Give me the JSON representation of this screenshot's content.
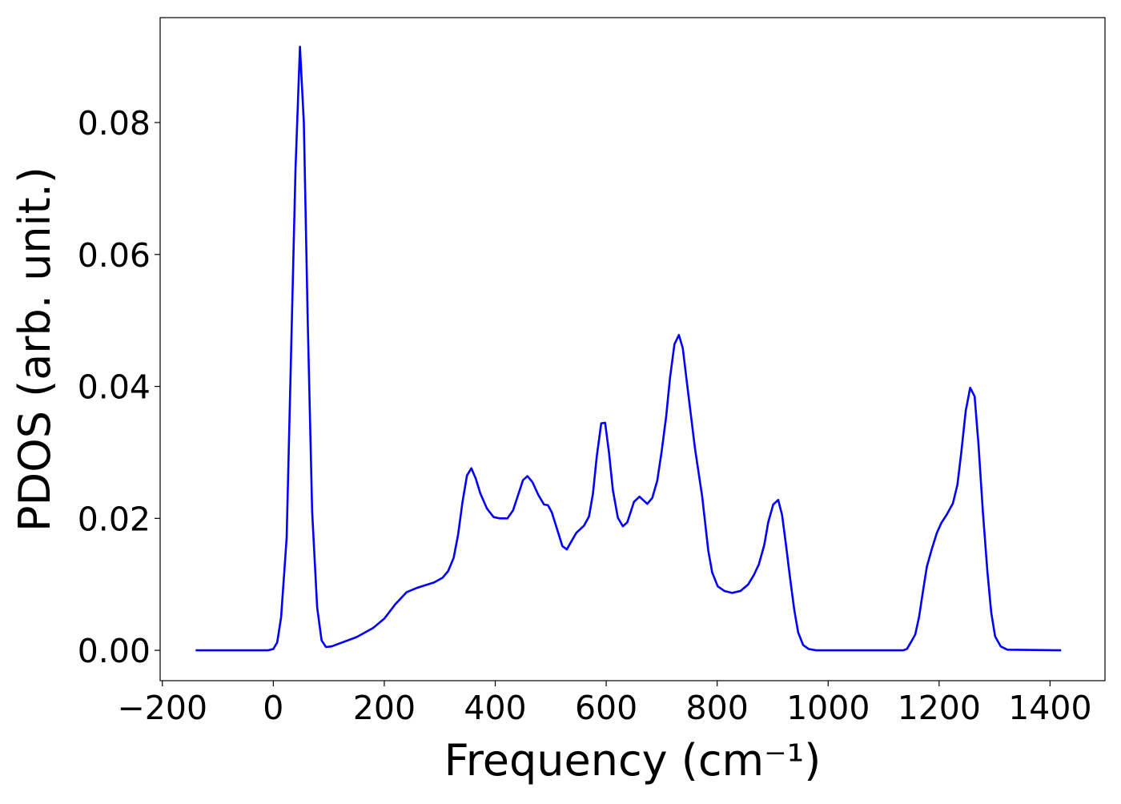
{
  "chart_data": {
    "type": "line",
    "xlabel": "Frequency (cm⁻¹)",
    "ylabel": "PDOS (arb. unit.)",
    "xlim": [
      -204,
      1499
    ],
    "ylim": [
      -0.0046,
      0.0959
    ],
    "xticks": [
      {
        "value": -200,
        "label": "−200"
      },
      0,
      200,
      400,
      600,
      800,
      1000,
      1200,
      1400
    ],
    "yticks": [
      {
        "value": 0,
        "label": "0.00"
      },
      {
        "value": 0.02,
        "label": "0.02"
      },
      {
        "value": 0.04,
        "label": "0.04"
      },
      {
        "value": 0.06,
        "label": "0.06"
      },
      {
        "value": 0.08,
        "label": "0.08"
      }
    ],
    "grid": false,
    "series": [
      {
        "name": "PDOS",
        "color": "#0000ff",
        "x": [
          -140,
          -10,
          0,
          7,
          14,
          24,
          32,
          40,
          48,
          55,
          62,
          70,
          79,
          87,
          95,
          105,
          150,
          180,
          200,
          220,
          240,
          260,
          290,
          305,
          315,
          325,
          333,
          341,
          349,
          357,
          365,
          373,
          385,
          397,
          408,
          422,
          432,
          443,
          450,
          458,
          467,
          478,
          488,
          495,
          502,
          521,
          529,
          546,
          560,
          569,
          576,
          583,
          591,
          598,
          605,
          612,
          621,
          630,
          638,
          650,
          660,
          674,
          683,
          692,
          700,
          708,
          715,
          723,
          731,
          738,
          745,
          760,
          773,
          784,
          791,
          801,
          813,
          827,
          842,
          856,
          866,
          875,
          885,
          892,
          901,
          910,
          917,
          924,
          931,
          939,
          946,
          955,
          965,
          979,
          1135,
          1142,
          1149,
          1157,
          1164,
          1171,
          1178,
          1187,
          1196,
          1204,
          1214,
          1225,
          1233,
          1240,
          1248,
          1256,
          1264,
          1271,
          1279,
          1287,
          1294,
          1301,
          1311,
          1323,
          1420
        ],
        "values": [
          0,
          0,
          0.0002,
          0.0012,
          0.005,
          0.017,
          0.045,
          0.073,
          0.0915,
          0.08,
          0.05,
          0.021,
          0.0065,
          0.0015,
          0.0005,
          0.0006,
          0.002,
          0.0034,
          0.0048,
          0.007,
          0.0088,
          0.0095,
          0.0103,
          0.011,
          0.012,
          0.014,
          0.0175,
          0.0225,
          0.0265,
          0.0276,
          0.026,
          0.0238,
          0.0215,
          0.0202,
          0.02,
          0.02,
          0.0212,
          0.024,
          0.0258,
          0.0264,
          0.0255,
          0.0235,
          0.0221,
          0.022,
          0.0209,
          0.0158,
          0.0153,
          0.0178,
          0.0189,
          0.0203,
          0.0237,
          0.0294,
          0.0344,
          0.0345,
          0.03,
          0.0243,
          0.0201,
          0.0188,
          0.0194,
          0.0225,
          0.0233,
          0.0222,
          0.0231,
          0.0257,
          0.0302,
          0.0354,
          0.0413,
          0.0464,
          0.0478,
          0.0458,
          0.0409,
          0.0306,
          0.0233,
          0.0151,
          0.0118,
          0.0097,
          0.009,
          0.0087,
          0.009,
          0.01,
          0.0114,
          0.013,
          0.016,
          0.0194,
          0.0221,
          0.0228,
          0.0205,
          0.016,
          0.0112,
          0.0061,
          0.0027,
          0.0008,
          0.0002,
          0,
          0,
          0.0002,
          0.0012,
          0.0024,
          0.0051,
          0.009,
          0.0127,
          0.0154,
          0.0178,
          0.0193,
          0.0206,
          0.0223,
          0.0251,
          0.03,
          0.0363,
          0.0398,
          0.0385,
          0.0312,
          0.0209,
          0.012,
          0.0057,
          0.0021,
          0.0006,
          0.0001,
          0
        ]
      }
    ]
  }
}
